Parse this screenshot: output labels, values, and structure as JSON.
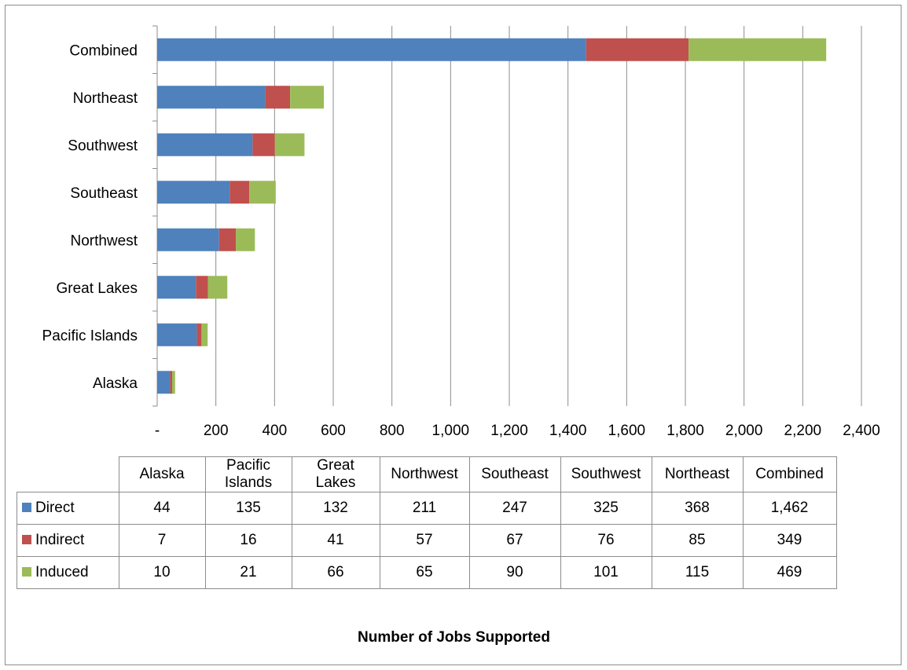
{
  "chart_data": {
    "type": "bar",
    "orientation": "horizontal",
    "stacked": true,
    "categories": [
      "Alaska",
      "Pacific Islands",
      "Great Lakes",
      "Northwest",
      "Southeast",
      "Southwest",
      "Northeast",
      "Combined"
    ],
    "table_headers": [
      "Alaska",
      "Pacific\nIslands",
      "Great\nLakes",
      "Northwest",
      "Southeast",
      "Southwest",
      "Northeast",
      "Combined"
    ],
    "series": [
      {
        "name": "Direct",
        "color": "#4f81bd",
        "values": [
          44,
          135,
          132,
          211,
          247,
          325,
          368,
          1462
        ],
        "labels": [
          "44",
          "135",
          "132",
          "211",
          "247",
          "325",
          "368",
          "1,462"
        ]
      },
      {
        "name": "Indirect",
        "color": "#c0504d",
        "values": [
          7,
          16,
          41,
          57,
          67,
          76,
          85,
          349
        ],
        "labels": [
          "7",
          "16",
          "41",
          "57",
          "67",
          "76",
          "85",
          "349"
        ]
      },
      {
        "name": "Induced",
        "color": "#9bbb59",
        "values": [
          10,
          21,
          66,
          65,
          90,
          101,
          115,
          469
        ],
        "labels": [
          "10",
          "21",
          "66",
          "65",
          "90",
          "101",
          "115",
          "469"
        ]
      }
    ],
    "xlabel": "Number of Jobs Supported",
    "xlim": [
      0,
      2400
    ],
    "xticks": [
      0,
      200,
      400,
      600,
      800,
      1000,
      1200,
      1400,
      1600,
      1800,
      2000,
      2200,
      2400
    ],
    "xtick_labels": [
      "-",
      "200",
      "400",
      "600",
      "800",
      "1,000",
      "1,200",
      "1,400",
      "1,600",
      "1,800",
      "2,000",
      "2,200",
      "2,400"
    ],
    "grid": "vertical",
    "legend": "data-table"
  }
}
